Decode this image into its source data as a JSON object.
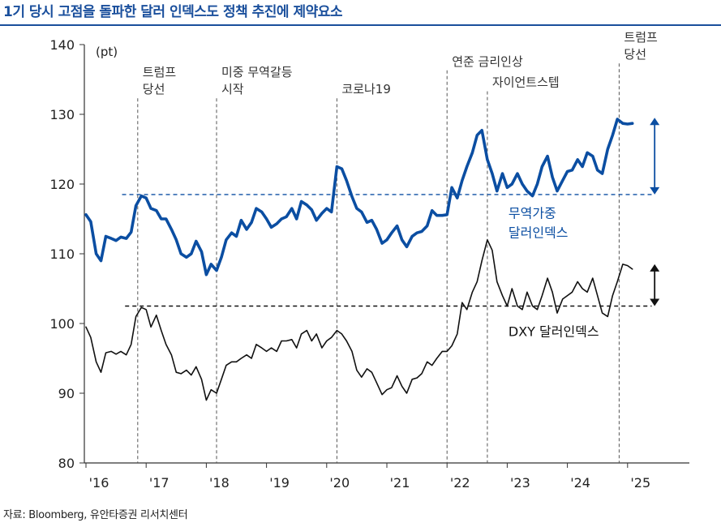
{
  "header": {
    "title": "1기 당시 고점을 돌파한 달러 인덱스도 정책 추진에 제약요소"
  },
  "footer": {
    "source": "자료: Bloomberg, 유안타증권 리서치센터"
  },
  "colors": {
    "title": "#1a4f9c",
    "broad_series": "#0b4ea2",
    "dxy_series": "#111111",
    "axis": "#333333",
    "event_line": "#555555"
  },
  "chart_data": {
    "type": "line",
    "title": "",
    "xlabel": "",
    "ylabel": "(pt)",
    "ylim": [
      80,
      140
    ],
    "yticks": [
      80,
      90,
      100,
      110,
      120,
      130,
      140
    ],
    "xlim": [
      2016,
      2025.9
    ],
    "xticks": [
      {
        "x": 2016,
        "label": "'16"
      },
      {
        "x": 2017,
        "label": "'17"
      },
      {
        "x": 2018,
        "label": "'18"
      },
      {
        "x": 2019,
        "label": "'19"
      },
      {
        "x": 2020,
        "label": "'20"
      },
      {
        "x": 2021,
        "label": "'21"
      },
      {
        "x": 2022,
        "label": "'22"
      },
      {
        "x": 2023,
        "label": "'23"
      },
      {
        "x": 2024,
        "label": "'24"
      },
      {
        "x": 2025,
        "label": "'25"
      }
    ],
    "grid": false,
    "series": [
      {
        "name": "무역가중 달러인덱스",
        "color": "#0b4ea2",
        "points": [
          [
            2016.0,
            115.6
          ],
          [
            2016.08,
            114.6
          ],
          [
            2016.17,
            110.0
          ],
          [
            2016.25,
            109.0
          ],
          [
            2016.33,
            112.5
          ],
          [
            2016.42,
            112.2
          ],
          [
            2016.5,
            111.9
          ],
          [
            2016.58,
            112.4
          ],
          [
            2016.67,
            112.2
          ],
          [
            2016.75,
            113.1
          ],
          [
            2016.83,
            116.9
          ],
          [
            2016.92,
            118.3
          ],
          [
            2017.0,
            118.0
          ],
          [
            2017.08,
            116.5
          ],
          [
            2017.17,
            116.2
          ],
          [
            2017.25,
            115.0
          ],
          [
            2017.33,
            115.0
          ],
          [
            2017.42,
            113.5
          ],
          [
            2017.5,
            112.0
          ],
          [
            2017.58,
            110.0
          ],
          [
            2017.67,
            109.5
          ],
          [
            2017.75,
            110.0
          ],
          [
            2017.83,
            111.8
          ],
          [
            2017.92,
            110.3
          ],
          [
            2018.0,
            107.0
          ],
          [
            2018.08,
            108.5
          ],
          [
            2018.17,
            107.6
          ],
          [
            2018.25,
            109.5
          ],
          [
            2018.33,
            112.0
          ],
          [
            2018.42,
            113.0
          ],
          [
            2018.5,
            112.5
          ],
          [
            2018.58,
            114.8
          ],
          [
            2018.67,
            113.5
          ],
          [
            2018.75,
            114.5
          ],
          [
            2018.83,
            116.5
          ],
          [
            2018.92,
            116.0
          ],
          [
            2019.0,
            115.0
          ],
          [
            2019.08,
            113.8
          ],
          [
            2019.17,
            114.3
          ],
          [
            2019.25,
            115.0
          ],
          [
            2019.33,
            115.3
          ],
          [
            2019.42,
            116.5
          ],
          [
            2019.5,
            115.0
          ],
          [
            2019.58,
            117.5
          ],
          [
            2019.67,
            117.0
          ],
          [
            2019.75,
            116.3
          ],
          [
            2019.83,
            114.8
          ],
          [
            2019.92,
            115.8
          ],
          [
            2020.0,
            116.5
          ],
          [
            2020.08,
            116.0
          ],
          [
            2020.17,
            122.5
          ],
          [
            2020.25,
            122.2
          ],
          [
            2020.33,
            120.5
          ],
          [
            2020.42,
            118.2
          ],
          [
            2020.5,
            116.5
          ],
          [
            2020.58,
            116.0
          ],
          [
            2020.67,
            114.5
          ],
          [
            2020.75,
            114.8
          ],
          [
            2020.83,
            113.5
          ],
          [
            2020.92,
            111.5
          ],
          [
            2021.0,
            112.0
          ],
          [
            2021.08,
            113.0
          ],
          [
            2021.17,
            114.0
          ],
          [
            2021.25,
            112.0
          ],
          [
            2021.33,
            111.0
          ],
          [
            2021.42,
            112.5
          ],
          [
            2021.5,
            113.0
          ],
          [
            2021.58,
            113.2
          ],
          [
            2021.67,
            114.0
          ],
          [
            2021.75,
            116.2
          ],
          [
            2021.83,
            115.5
          ],
          [
            2021.92,
            115.5
          ],
          [
            2022.0,
            115.6
          ],
          [
            2022.08,
            119.5
          ],
          [
            2022.17,
            118.0
          ],
          [
            2022.25,
            120.5
          ],
          [
            2022.33,
            122.5
          ],
          [
            2022.42,
            124.5
          ],
          [
            2022.5,
            127.0
          ],
          [
            2022.58,
            127.7
          ],
          [
            2022.67,
            123.5
          ],
          [
            2022.75,
            121.5
          ],
          [
            2022.83,
            119.0
          ],
          [
            2022.92,
            121.5
          ],
          [
            2023.0,
            119.5
          ],
          [
            2023.08,
            120.0
          ],
          [
            2023.17,
            121.5
          ],
          [
            2023.25,
            120.0
          ],
          [
            2023.33,
            119.0
          ],
          [
            2023.42,
            118.3
          ],
          [
            2023.5,
            120.0
          ],
          [
            2023.58,
            122.5
          ],
          [
            2023.67,
            124.0
          ],
          [
            2023.75,
            121.0
          ],
          [
            2023.83,
            119.0
          ],
          [
            2023.92,
            120.5
          ],
          [
            2024.0,
            121.8
          ],
          [
            2024.08,
            122.0
          ],
          [
            2024.17,
            123.5
          ],
          [
            2024.25,
            122.5
          ],
          [
            2024.33,
            124.5
          ],
          [
            2024.42,
            124.0
          ],
          [
            2024.5,
            122.0
          ],
          [
            2024.58,
            121.5
          ],
          [
            2024.67,
            125.0
          ],
          [
            2024.75,
            127.0
          ],
          [
            2024.83,
            129.3
          ],
          [
            2024.92,
            128.7
          ],
          [
            2025.0,
            128.6
          ],
          [
            2025.08,
            128.7
          ]
        ]
      },
      {
        "name": "DXY 달러인덱스",
        "color": "#111111",
        "points": [
          [
            2016.0,
            99.5
          ],
          [
            2016.08,
            98.0
          ],
          [
            2016.17,
            94.5
          ],
          [
            2016.25,
            93.0
          ],
          [
            2016.33,
            95.8
          ],
          [
            2016.42,
            96.0
          ],
          [
            2016.5,
            95.6
          ],
          [
            2016.58,
            96.0
          ],
          [
            2016.67,
            95.5
          ],
          [
            2016.75,
            97.0
          ],
          [
            2016.83,
            101.0
          ],
          [
            2016.92,
            102.3
          ],
          [
            2017.0,
            102.0
          ],
          [
            2017.08,
            99.5
          ],
          [
            2017.17,
            101.2
          ],
          [
            2017.25,
            99.0
          ],
          [
            2017.33,
            97.0
          ],
          [
            2017.42,
            95.5
          ],
          [
            2017.5,
            93.0
          ],
          [
            2017.58,
            92.8
          ],
          [
            2017.67,
            93.3
          ],
          [
            2017.75,
            92.6
          ],
          [
            2017.83,
            93.8
          ],
          [
            2017.92,
            92.0
          ],
          [
            2018.0,
            89.0
          ],
          [
            2018.08,
            90.5
          ],
          [
            2018.17,
            90.0
          ],
          [
            2018.25,
            92.0
          ],
          [
            2018.33,
            94.0
          ],
          [
            2018.42,
            94.5
          ],
          [
            2018.5,
            94.5
          ],
          [
            2018.58,
            95.0
          ],
          [
            2018.67,
            95.5
          ],
          [
            2018.75,
            95.0
          ],
          [
            2018.83,
            97.0
          ],
          [
            2018.92,
            96.5
          ],
          [
            2019.0,
            96.0
          ],
          [
            2019.08,
            96.5
          ],
          [
            2019.17,
            96.0
          ],
          [
            2019.25,
            97.5
          ],
          [
            2019.33,
            97.5
          ],
          [
            2019.42,
            97.7
          ],
          [
            2019.5,
            96.5
          ],
          [
            2019.58,
            98.5
          ],
          [
            2019.67,
            99.0
          ],
          [
            2019.75,
            97.5
          ],
          [
            2019.83,
            98.5
          ],
          [
            2019.92,
            96.5
          ],
          [
            2020.0,
            97.5
          ],
          [
            2020.08,
            98.0
          ],
          [
            2020.17,
            99.0
          ],
          [
            2020.25,
            98.5
          ],
          [
            2020.33,
            97.5
          ],
          [
            2020.42,
            96.0
          ],
          [
            2020.5,
            93.3
          ],
          [
            2020.58,
            92.3
          ],
          [
            2020.67,
            93.5
          ],
          [
            2020.75,
            93.0
          ],
          [
            2020.83,
            91.5
          ],
          [
            2020.92,
            89.8
          ],
          [
            2021.0,
            90.5
          ],
          [
            2021.08,
            90.8
          ],
          [
            2021.17,
            92.5
          ],
          [
            2021.25,
            91.0
          ],
          [
            2021.33,
            90.0
          ],
          [
            2021.42,
            92.0
          ],
          [
            2021.5,
            92.2
          ],
          [
            2021.58,
            92.8
          ],
          [
            2021.67,
            94.5
          ],
          [
            2021.75,
            94.0
          ],
          [
            2021.83,
            95.0
          ],
          [
            2021.92,
            96.0
          ],
          [
            2022.0,
            96.0
          ],
          [
            2022.08,
            96.8
          ],
          [
            2022.17,
            98.5
          ],
          [
            2022.25,
            103.0
          ],
          [
            2022.33,
            102.0
          ],
          [
            2022.42,
            104.5
          ],
          [
            2022.5,
            106.0
          ],
          [
            2022.58,
            109.0
          ],
          [
            2022.67,
            112.0
          ],
          [
            2022.75,
            110.5
          ],
          [
            2022.83,
            106.0
          ],
          [
            2022.92,
            104.0
          ],
          [
            2023.0,
            102.5
          ],
          [
            2023.08,
            105.0
          ],
          [
            2023.17,
            102.5
          ],
          [
            2023.25,
            102.0
          ],
          [
            2023.33,
            104.5
          ],
          [
            2023.42,
            102.5
          ],
          [
            2023.5,
            102.0
          ],
          [
            2023.58,
            104.0
          ],
          [
            2023.67,
            106.5
          ],
          [
            2023.75,
            104.5
          ],
          [
            2023.83,
            101.5
          ],
          [
            2023.92,
            103.5
          ],
          [
            2024.0,
            104.0
          ],
          [
            2024.08,
            104.5
          ],
          [
            2024.17,
            106.0
          ],
          [
            2024.25,
            105.0
          ],
          [
            2024.33,
            104.5
          ],
          [
            2024.42,
            106.5
          ],
          [
            2024.5,
            104.0
          ],
          [
            2024.58,
            101.5
          ],
          [
            2024.67,
            101.0
          ],
          [
            2024.75,
            104.0
          ],
          [
            2024.83,
            106.0
          ],
          [
            2024.92,
            108.5
          ],
          [
            2025.0,
            108.3
          ],
          [
            2025.08,
            107.8
          ]
        ]
      }
    ],
    "events": [
      {
        "x": 2016.86,
        "label_lines": [
          "트럼프",
          "당선"
        ],
        "label_y": 133
      },
      {
        "x": 2018.17,
        "label_lines": [
          "미중 무역갈등",
          "시작"
        ],
        "label_y": 133
      },
      {
        "x": 2020.17,
        "label_lines": [
          "코로나19"
        ],
        "label_y": 133
      },
      {
        "x": 2022.0,
        "label_lines": [
          "연준 금리인상"
        ],
        "label_y": 137
      },
      {
        "x": 2022.67,
        "label_lines": [
          "자이언트스텝"
        ],
        "label_y": 134
      },
      {
        "x": 2024.86,
        "label_lines": [
          "트럼프",
          "당선"
        ],
        "label_y": 138
      }
    ],
    "reference_lines": [
      {
        "series": "무역가중 달러인덱스",
        "y": 118.5,
        "x_start": 2016.6,
        "x_end": 2025.4,
        "color": "#0b4ea2"
      },
      {
        "series": "DXY 달러인덱스",
        "y": 102.5,
        "x_start": 2016.65,
        "x_end": 2025.4,
        "color": "#111111"
      }
    ],
    "range_arrows": [
      {
        "x": 2025.45,
        "y_low": 118.5,
        "y_high": 129.5,
        "color": "#0b4ea2"
      },
      {
        "x": 2025.45,
        "y_low": 102.5,
        "y_high": 108.5,
        "color": "#111111"
      }
    ],
    "annotations": [
      {
        "lines": [
          "무역가중",
          "달러인덱스"
        ],
        "x": 2023.02,
        "y": 115.2,
        "color": "#0b4ea2"
      },
      {
        "lines": [
          "DXY 달러인덱스"
        ],
        "x": 2023.02,
        "y": 98.2,
        "color": "#111111"
      }
    ]
  }
}
